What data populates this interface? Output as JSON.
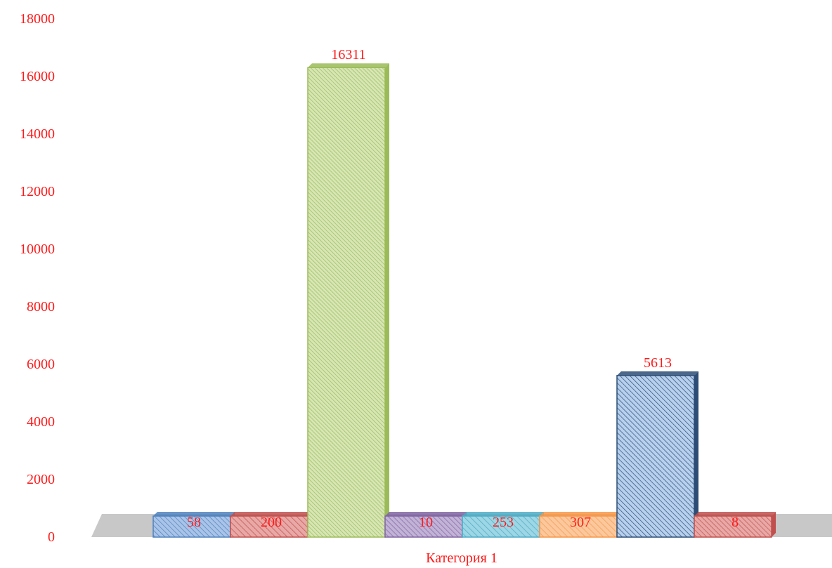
{
  "chart_data": {
    "type": "bar",
    "categories": [
      "Категория 1"
    ],
    "series": [
      {
        "values": [
          58
        ],
        "color": "#4f81bd",
        "light": "#a9c4e8",
        "pattern": "hatch-dense"
      },
      {
        "values": [
          200
        ],
        "color": "#c0504d",
        "light": "#e8a8a6",
        "pattern": "hatch-base"
      },
      {
        "values": [
          16311
        ],
        "color": "#9bbb59",
        "light": "#d7e6b4",
        "pattern": "hatch-fine"
      },
      {
        "values": [
          10
        ],
        "color": "#8064a2",
        "light": "#c2b2d6",
        "pattern": "hatch-dense"
      },
      {
        "values": [
          253
        ],
        "color": "#4bacc6",
        "light": "#9dd6e4",
        "pattern": "hatch-base"
      },
      {
        "values": [
          307
        ],
        "color": "#f79646",
        "light": "#fbc89d",
        "pattern": "hatch-base"
      },
      {
        "values": [
          5613
        ],
        "color": "#2c4d75",
        "light": "#b7d0ee",
        "pattern": "hatch-dense"
      },
      {
        "values": [
          8
        ],
        "color": "#c0504d",
        "light": "#e8a8a6",
        "pattern": "hatch-dense"
      }
    ],
    "data_labels": [
      "58",
      "200",
      "16311",
      "10",
      "253",
      "307",
      "5613",
      "8"
    ],
    "ylim": [
      0,
      18000
    ],
    "yticks": [
      "0",
      "2000",
      "4000",
      "6000",
      "8000",
      "10000",
      "12000",
      "14000",
      "16000",
      "18000"
    ],
    "xlabel": "",
    "ylabel": "",
    "title": "",
    "grid": false,
    "legend": "none",
    "floor_color": "#c8c8c8"
  }
}
